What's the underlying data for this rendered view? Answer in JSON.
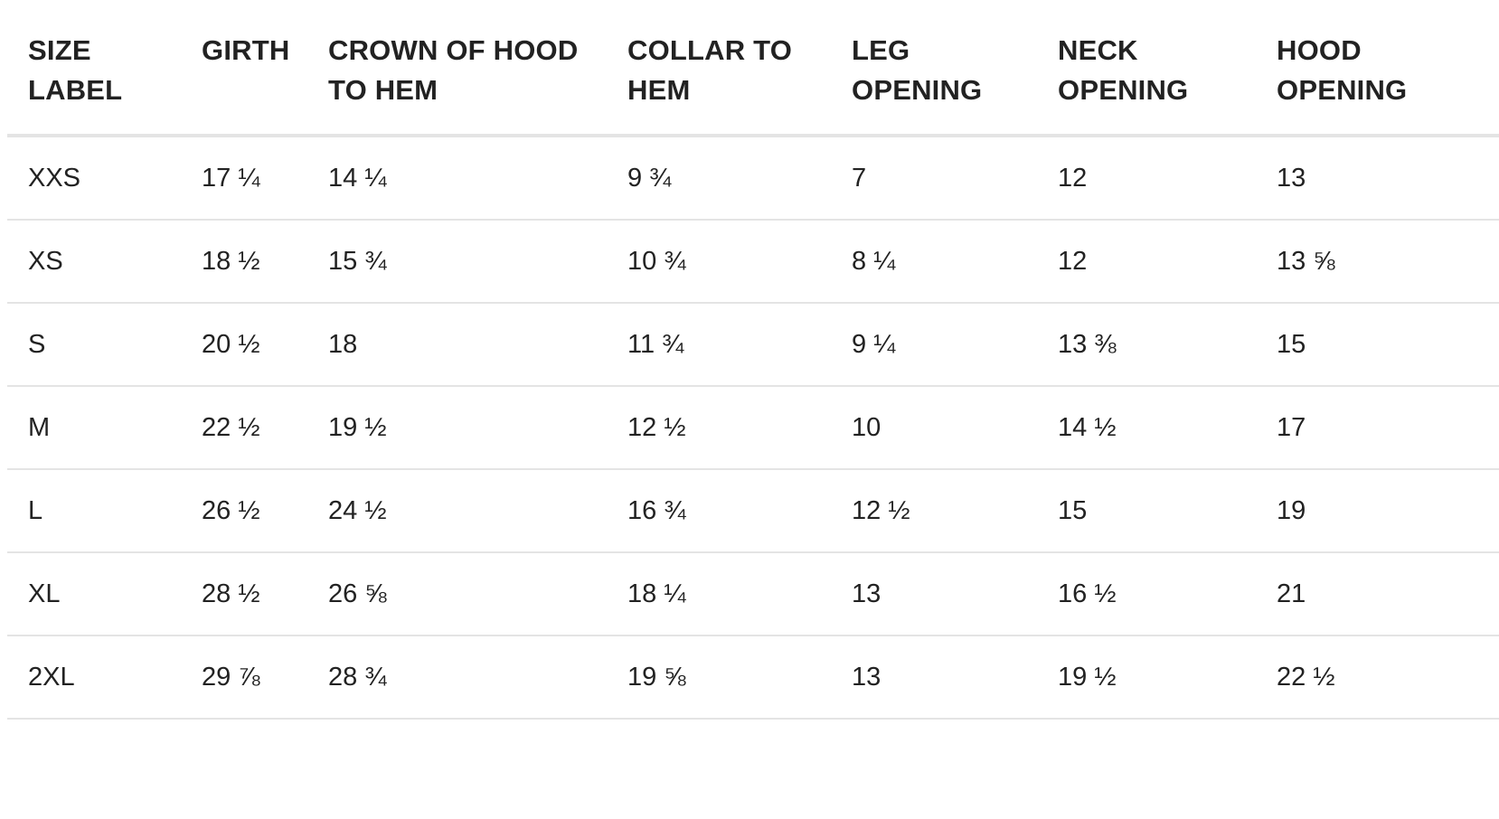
{
  "table": {
    "headers": [
      [
        "SIZE",
        "LABEL"
      ],
      [
        "GIRTH"
      ],
      [
        "CROWN OF HOOD",
        "TO HEM"
      ],
      [
        "COLLAR TO",
        "HEM"
      ],
      [
        "LEG",
        "OPENING"
      ],
      [
        "NECK",
        "OPENING"
      ],
      [
        "HOOD",
        "OPENING"
      ]
    ],
    "rows": [
      [
        "XXS",
        "17 ¼",
        "14 ¼",
        "9 ¾",
        "7",
        "12",
        "13"
      ],
      [
        "XS",
        "18 ½",
        "15 ¾",
        "10 ¾",
        "8 ¼",
        "12",
        "13 ⅝"
      ],
      [
        "S",
        "20 ½",
        "18",
        "11 ¾",
        "9 ¼",
        "13 ⅜",
        "15"
      ],
      [
        "M",
        "22 ½",
        "19 ½",
        "12 ½",
        "10",
        "14 ½",
        "17"
      ],
      [
        "L",
        "26 ½",
        "24 ½",
        "16 ¾",
        "12 ½",
        "15",
        "19"
      ],
      [
        "XL",
        "28 ½",
        "26 ⅝",
        "18 ¼",
        "13",
        "16 ½",
        "21"
      ],
      [
        "2XL",
        "29 ⅞",
        "28 ¾",
        "19 ⅝",
        "13",
        "19 ½",
        "22 ½"
      ]
    ]
  },
  "colors": {
    "text": "#222222",
    "divider": "#e4e4e4",
    "background": "#ffffff"
  }
}
